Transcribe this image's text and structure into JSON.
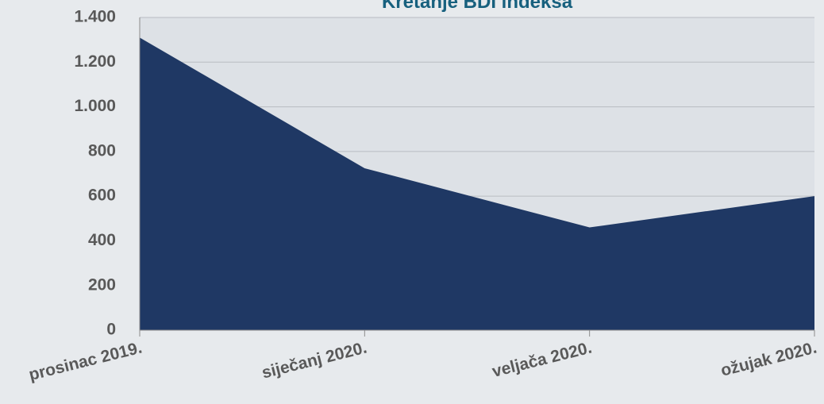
{
  "chart_data": {
    "type": "area",
    "title": "Kretanje BDI indeksa",
    "categories": [
      "prosinac 2019.",
      "siječanj 2020.",
      "veljača 2020.",
      "ožujak 2020."
    ],
    "values": [
      1310,
      725,
      460,
      600
    ],
    "color": "#1f3864",
    "ylim": [
      0,
      1400
    ],
    "yticks": [
      0,
      200,
      400,
      600,
      800,
      {
        "value": 1000,
        "label": "1.000"
      },
      {
        "value": 1200,
        "label": "1.200"
      },
      {
        "value": 1400,
        "label": "1.400"
      }
    ],
    "grid": true
  }
}
